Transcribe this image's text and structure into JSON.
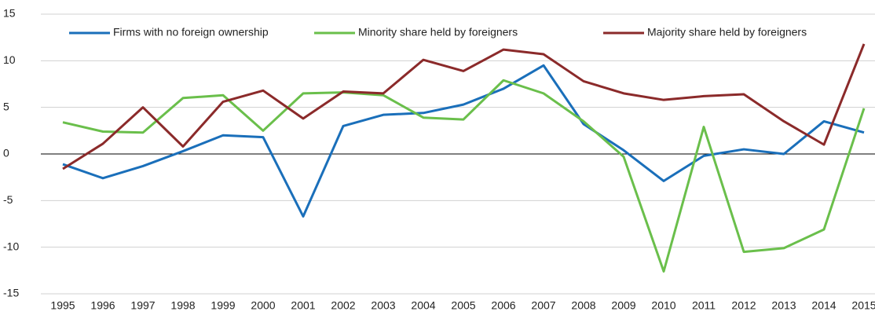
{
  "chart_data": {
    "type": "line",
    "categories": [
      "1995",
      "1996",
      "1997",
      "1998",
      "1999",
      "2000",
      "2001",
      "2002",
      "2003",
      "2004",
      "2005",
      "2006",
      "2007",
      "2008",
      "2009",
      "2010",
      "2011",
      "2012",
      "2013",
      "2014",
      "2015"
    ],
    "series": [
      {
        "name": "Firms with no foreign ownership",
        "color": "#1a6fba",
        "values": [
          -1.1,
          -2.6,
          -1.3,
          0.3,
          2.0,
          1.8,
          -6.7,
          3.0,
          4.2,
          4.4,
          5.3,
          7.0,
          9.5,
          3.2,
          0.4,
          -2.9,
          -0.2,
          0.5,
          0.0,
          3.5,
          2.3
        ]
      },
      {
        "name": "Minority share held by foreigners",
        "color": "#6abf4b",
        "values": [
          3.4,
          2.4,
          2.3,
          6.0,
          6.3,
          2.5,
          6.5,
          6.6,
          6.3,
          3.9,
          3.7,
          7.9,
          6.5,
          3.5,
          -0.3,
          -12.6,
          2.9,
          -10.5,
          -10.1,
          -8.1,
          4.9
        ]
      },
      {
        "name": "Majority share held by foreigners",
        "color": "#8b2a2a",
        "values": [
          -1.6,
          1.1,
          5.0,
          0.8,
          5.6,
          6.8,
          3.8,
          6.7,
          6.5,
          10.1,
          8.9,
          11.2,
          10.7,
          7.8,
          6.5,
          5.8,
          6.2,
          6.4,
          3.5,
          1.0,
          11.8
        ]
      }
    ],
    "ylim": [
      -15,
      15
    ],
    "yticks": [
      -15,
      -10,
      -5,
      0,
      5,
      10,
      15
    ],
    "grid": true,
    "legend": "top"
  }
}
